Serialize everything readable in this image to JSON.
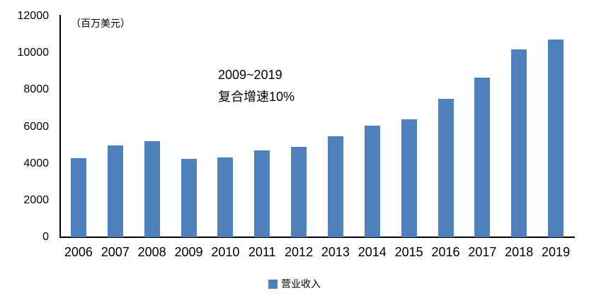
{
  "chart_data": {
    "type": "bar",
    "title": "",
    "unit_label": "（百万美元）",
    "annotation": [
      "2009~2019",
      "复合增速10%"
    ],
    "categories": [
      "2006",
      "2007",
      "2008",
      "2009",
      "2010",
      "2011",
      "2012",
      "2013",
      "2014",
      "2015",
      "2016",
      "2017",
      "2018",
      "2019"
    ],
    "series": [
      {
        "name": "营业收入",
        "color": "#4F81BD",
        "values": [
          4300,
          5000,
          5200,
          4250,
          4330,
          4700,
          4920,
          5470,
          6050,
          6390,
          7520,
          8660,
          10200,
          10740
        ]
      }
    ],
    "xlabel": "",
    "ylabel": "",
    "ylim": [
      0,
      12000
    ],
    "yticks": [
      12000,
      10000,
      8000,
      6000,
      4000,
      2000,
      0
    ],
    "grid": false,
    "legend_position": "bottom",
    "axis_color": "#000000",
    "text_color": "#000000",
    "background": "#FFFFFF"
  }
}
